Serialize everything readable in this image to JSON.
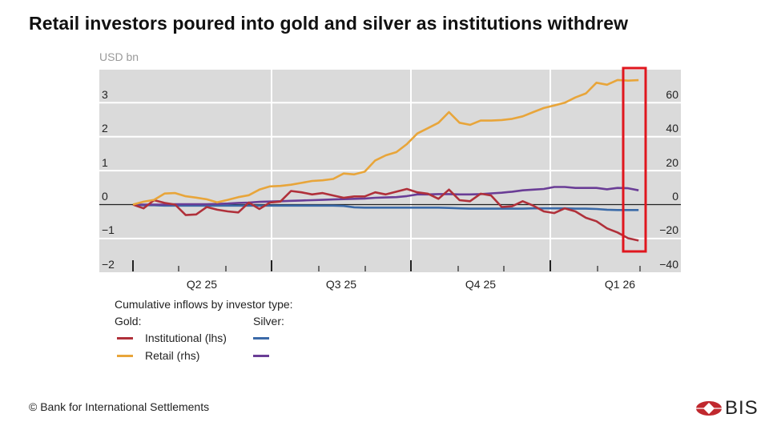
{
  "title": "Retail investors poured into gold and silver as institutions withdrew",
  "footer": "© Bank for International Settlements",
  "logo_text": "BIS",
  "chart_data": {
    "type": "line",
    "title": "Retail investors poured into gold and silver as institutions withdrew",
    "unit_label": "USD bn",
    "x_frequency": "weekly",
    "x_start": "2025-03-31",
    "x_end": "2026-03-02",
    "x_tick_labels": [
      "Q2 25",
      "Q3 25",
      "Q4 25",
      "Q1 26"
    ],
    "y_left": {
      "ticks": [
        "3",
        "2",
        "1",
        "0",
        "−1",
        "−2"
      ],
      "range": [
        -2,
        3.9
      ]
    },
    "y_right": {
      "ticks": [
        "60",
        "40",
        "20",
        "0",
        "−20",
        "−40"
      ],
      "range": [
        -40,
        78
      ]
    },
    "grid": true,
    "legend": {
      "title": "Cumulative inflows by investor type:",
      "gold_header": "Gold:",
      "silver_header": "Silver:",
      "rows": [
        "Institutional (lhs)",
        "Retail (rhs)"
      ]
    },
    "highlight": "latest observations boxed in red",
    "series": [
      {
        "name": "Gold Institutional (lhs)",
        "axis": "left",
        "color": "#b0303a",
        "values": [
          0,
          -0.11,
          0.13,
          0.05,
          0,
          -0.31,
          -0.29,
          -0.07,
          -0.15,
          -0.2,
          -0.23,
          0.06,
          -0.13,
          0.06,
          0.09,
          0.4,
          0.36,
          0.3,
          0.34,
          0.27,
          0.2,
          0.24,
          0.24,
          0.36,
          0.3,
          0.38,
          0.46,
          0.36,
          0.32,
          0.17,
          0.44,
          0.13,
          0.1,
          0.32,
          0.27,
          -0.07,
          -0.05,
          0.1,
          -0.03,
          -0.2,
          -0.25,
          -0.11,
          -0.2,
          -0.39,
          -0.49,
          -0.7,
          -0.82,
          -0.99,
          -1.06
        ]
      },
      {
        "name": "Gold Retail (rhs)",
        "axis": "right",
        "color": "#e8a53a",
        "values": [
          0,
          1.7,
          2.8,
          6.5,
          6.8,
          4.9,
          4.1,
          3.1,
          1.3,
          2.8,
          4.4,
          5.5,
          8.8,
          10.7,
          11,
          11.7,
          12.8,
          13.9,
          14.3,
          15.1,
          18.3,
          17.8,
          19.4,
          26,
          29,
          30.9,
          35.6,
          41.9,
          45,
          48.2,
          54.5,
          48.2,
          47,
          49.5,
          49.5,
          49.8,
          50.5,
          52,
          54.5,
          56.9,
          58.4,
          60,
          63.1,
          65.5,
          71.8,
          70.6,
          73.4,
          73,
          73.3
        ]
      },
      {
        "name": "Silver Institutional",
        "axis": "left",
        "color": "#3b6aa8",
        "values": [
          0,
          -0.02,
          -0.02,
          -0.03,
          -0.03,
          -0.03,
          -0.03,
          -0.03,
          -0.03,
          -0.03,
          -0.03,
          -0.03,
          -0.03,
          -0.03,
          -0.03,
          -0.03,
          -0.03,
          -0.03,
          -0.03,
          -0.03,
          -0.04,
          -0.08,
          -0.09,
          -0.09,
          -0.09,
          -0.09,
          -0.09,
          -0.09,
          -0.09,
          -0.09,
          -0.1,
          -0.11,
          -0.12,
          -0.12,
          -0.12,
          -0.12,
          -0.12,
          -0.12,
          -0.11,
          -0.11,
          -0.11,
          -0.11,
          -0.12,
          -0.12,
          -0.13,
          -0.15,
          -0.16,
          -0.16,
          -0.16
        ]
      },
      {
        "name": "Silver Retail",
        "axis": "left",
        "color": "#6a3d96",
        "values": [
          0,
          0,
          0,
          0,
          0.01,
          0.01,
          0.01,
          0.01,
          0.02,
          0.03,
          0.05,
          0.06,
          0.08,
          0.09,
          0.1,
          0.11,
          0.12,
          0.13,
          0.14,
          0.15,
          0.16,
          0.17,
          0.18,
          0.2,
          0.21,
          0.22,
          0.25,
          0.3,
          0.3,
          0.31,
          0.31,
          0.3,
          0.3,
          0.31,
          0.33,
          0.35,
          0.38,
          0.42,
          0.44,
          0.46,
          0.52,
          0.52,
          0.49,
          0.49,
          0.49,
          0.45,
          0.49,
          0.48,
          0.42
        ]
      }
    ]
  }
}
